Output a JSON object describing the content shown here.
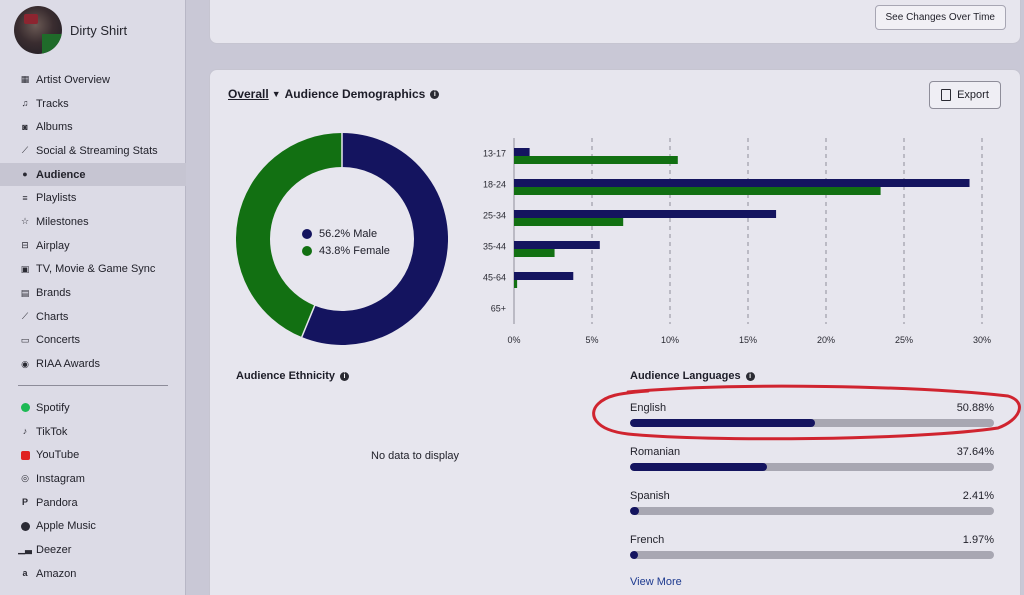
{
  "artist": {
    "name": "Dirty Shirt"
  },
  "sidebar": {
    "items": [
      {
        "label": "Artist Overview",
        "icon": "grid-icon"
      },
      {
        "label": "Tracks",
        "icon": "music-note-icon"
      },
      {
        "label": "Albums",
        "icon": "album-icon"
      },
      {
        "label": "Social & Streaming Stats",
        "icon": "stats-icon"
      },
      {
        "label": "Audience",
        "icon": "people-icon",
        "active": true
      },
      {
        "label": "Playlists",
        "icon": "playlist-icon"
      },
      {
        "label": "Milestones",
        "icon": "star-icon"
      },
      {
        "label": "Airplay",
        "icon": "radio-icon"
      },
      {
        "label": "TV, Movie & Game Sync",
        "icon": "tv-icon"
      },
      {
        "label": "Brands",
        "icon": "brands-icon"
      },
      {
        "label": "Charts",
        "icon": "chart-icon"
      },
      {
        "label": "Concerts",
        "icon": "ticket-icon"
      },
      {
        "label": "RIAA Awards",
        "icon": "award-icon"
      }
    ],
    "platforms": [
      {
        "label": "Spotify",
        "icon": "spotify-icon",
        "color": "#1db954"
      },
      {
        "label": "TikTok",
        "icon": "tiktok-icon"
      },
      {
        "label": "YouTube",
        "icon": "youtube-icon",
        "color": "#e02020"
      },
      {
        "label": "Instagram",
        "icon": "instagram-icon"
      },
      {
        "label": "Pandora",
        "icon": "pandora-icon"
      },
      {
        "label": "Apple Music",
        "icon": "apple-icon"
      },
      {
        "label": "Deezer",
        "icon": "deezer-icon"
      },
      {
        "label": "Amazon",
        "icon": "amazon-icon"
      }
    ]
  },
  "top": {
    "changes_label": "See Changes Over Time"
  },
  "demographics": {
    "dropdown_label": "Overall",
    "title": "Audience Demographics",
    "export_label": "Export",
    "gender": [
      {
        "label": "56.2% Male",
        "value": 56.2,
        "color": "#14145f"
      },
      {
        "label": "43.8% Female",
        "value": 43.8,
        "color": "#127012"
      }
    ]
  },
  "chart_data": {
    "type": "bar",
    "orientation": "horizontal",
    "categories": [
      "13-17",
      "18-24",
      "25-34",
      "35-44",
      "45-64",
      "65+"
    ],
    "series": [
      {
        "values": [
          1.0,
          29.2,
          16.8,
          5.5,
          3.8,
          0.0
        ],
        "color": "#14145f"
      },
      {
        "values": [
          10.5,
          23.5,
          7.0,
          2.6,
          0.2,
          0.0
        ],
        "color": "#127012"
      }
    ],
    "xlim": [
      0,
      30
    ],
    "xticks": [
      "0%",
      "5%",
      "10%",
      "15%",
      "20%",
      "25%",
      "30%"
    ],
    "grid": true
  },
  "ethnicity": {
    "title": "Audience Ethnicity",
    "empty": "No data to display"
  },
  "languages": {
    "title": "Audience Languages",
    "items": [
      {
        "name": "English",
        "value": "50.88%",
        "pct": 50.88
      },
      {
        "name": "Romanian",
        "value": "37.64%",
        "pct": 37.64
      },
      {
        "name": "Spanish",
        "value": "2.41%",
        "pct": 2.41
      },
      {
        "name": "French",
        "value": "1.97%",
        "pct": 1.97
      }
    ],
    "view_more": "View More"
  }
}
